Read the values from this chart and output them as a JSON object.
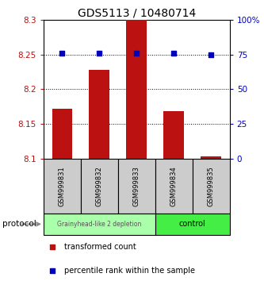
{
  "title": "GDS5113 / 10480714",
  "samples": [
    "GSM999831",
    "GSM999832",
    "GSM999833",
    "GSM999834",
    "GSM999835"
  ],
  "transformed_count": [
    8.172,
    8.228,
    8.302,
    8.168,
    8.104
  ],
  "percentile_rank": [
    76,
    76,
    76,
    76,
    75
  ],
  "ylim_left": [
    8.1,
    8.3
  ],
  "ylim_right": [
    0,
    100
  ],
  "yticks_left": [
    8.1,
    8.15,
    8.2,
    8.25,
    8.3
  ],
  "ytick_labels_left": [
    "8.1",
    "8.15",
    "8.2",
    "8.25",
    "8.3"
  ],
  "ytick_labels_right": [
    "0",
    "25",
    "50",
    "75",
    "100%"
  ],
  "bar_color": "#bb1111",
  "dot_color": "#0000bb",
  "bar_width": 0.55,
  "group1_label": "Grainyhead-like 2 depletion",
  "group1_color": "#aaffaa",
  "group2_label": "control",
  "group2_color": "#44ee44",
  "protocol_label": "protocol",
  "legend_item1_color": "#bb1111",
  "legend_item1_label": "transformed count",
  "legend_item2_color": "#0000bb",
  "legend_item2_label": "percentile rank within the sample",
  "title_fontsize": 10,
  "tick_fontsize": 7.5,
  "sample_fontsize": 6,
  "legend_fontsize": 7
}
